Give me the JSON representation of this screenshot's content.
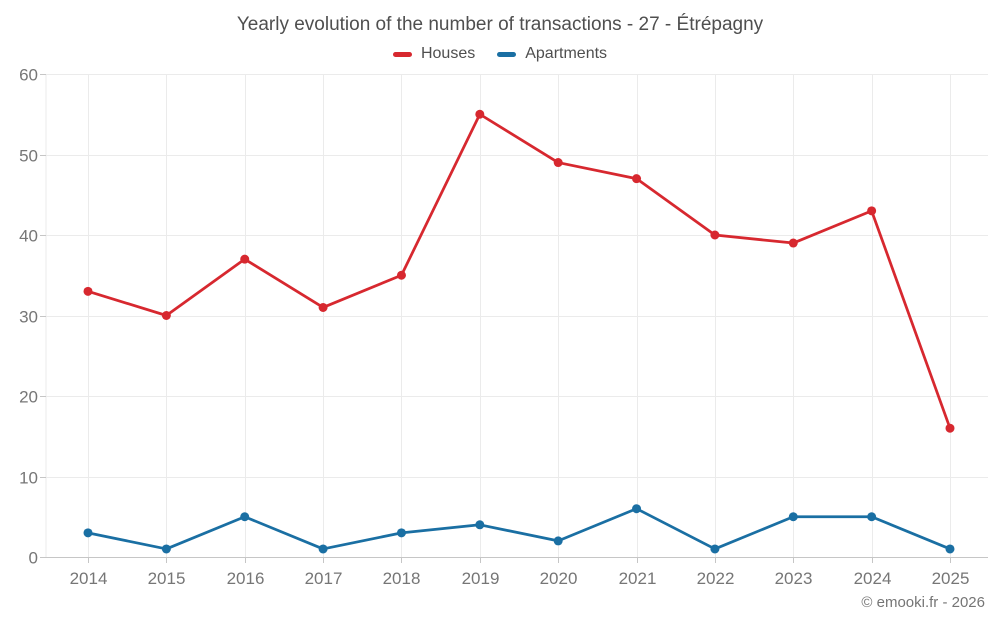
{
  "title": "Yearly evolution of the number of transactions - 27 - Étrépagny",
  "legend": {
    "items": [
      {
        "label": "Houses"
      },
      {
        "label": "Apartments"
      }
    ]
  },
  "footer": {
    "copyright": "© emooki.fr - 2026"
  },
  "colors": {
    "houses": "#d7282f",
    "apartments": "#1a6fa3",
    "grid": "#ebebeb",
    "axis": "#c6c6c6",
    "tick_text": "#767676",
    "title_text": "#4f4f4f"
  },
  "chart_data": {
    "type": "line",
    "title": "Yearly evolution of the number of transactions - 27 - Étrépagny",
    "x": [
      2014,
      2015,
      2016,
      2017,
      2018,
      2019,
      2020,
      2021,
      2022,
      2023,
      2024,
      2025
    ],
    "series": [
      {
        "name": "Houses",
        "color": "#d7282f",
        "values": [
          33,
          30,
          37,
          31,
          35,
          55,
          49,
          47,
          40,
          39,
          43,
          16
        ]
      },
      {
        "name": "Apartments",
        "color": "#1a6fa3",
        "values": [
          3,
          1,
          5,
          1,
          3,
          4,
          2,
          6,
          1,
          5,
          5,
          1
        ]
      }
    ],
    "xlabel": "",
    "ylabel": "",
    "ylim": [
      0,
      60
    ],
    "yticks": [
      0,
      10,
      20,
      30,
      40,
      50,
      60
    ],
    "grid": true,
    "legend_position": "top-center",
    "markers": true
  }
}
